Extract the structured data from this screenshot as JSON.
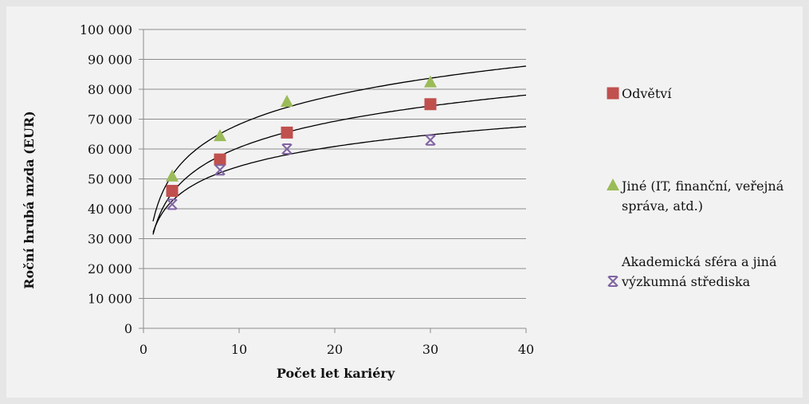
{
  "chart_data": {
    "type": "scatter",
    "title": "",
    "xlabel": "Počet let kariéry",
    "ylabel": "Roční hrubá mzda (EUR)",
    "xlim": [
      0,
      40
    ],
    "ylim": [
      0,
      100000
    ],
    "x_ticks": [
      "0",
      "10",
      "20",
      "30",
      "40"
    ],
    "y_ticks": [
      "0",
      "10 000",
      "20 000",
      "30 000",
      "40 000",
      "50 000",
      "60 000",
      "70 000",
      "80 000",
      "90 000",
      "100 000"
    ],
    "grid": "horizontal",
    "legend_position": "right",
    "series": [
      {
        "name": "Odvětví",
        "marker": "square",
        "color": "#c0504d",
        "x": [
          3,
          8,
          15,
          30
        ],
        "y": [
          46000,
          56500,
          65500,
          75000
        ]
      },
      {
        "name": "Jiné (IT, finanční, veřejná správa, atd.)",
        "marker": "triangle",
        "color": "#9bbb59",
        "x": [
          3,
          8,
          15,
          30
        ],
        "y": [
          51000,
          64500,
          76000,
          82500
        ]
      },
      {
        "name": "Akademická sféra a jiná výzkumná střediska",
        "marker": "x",
        "color": "#8064a2",
        "x": [
          3,
          8,
          15,
          30
        ],
        "y": [
          41500,
          53000,
          60000,
          63000
        ]
      }
    ],
    "trendline_type": "logarithmic"
  }
}
